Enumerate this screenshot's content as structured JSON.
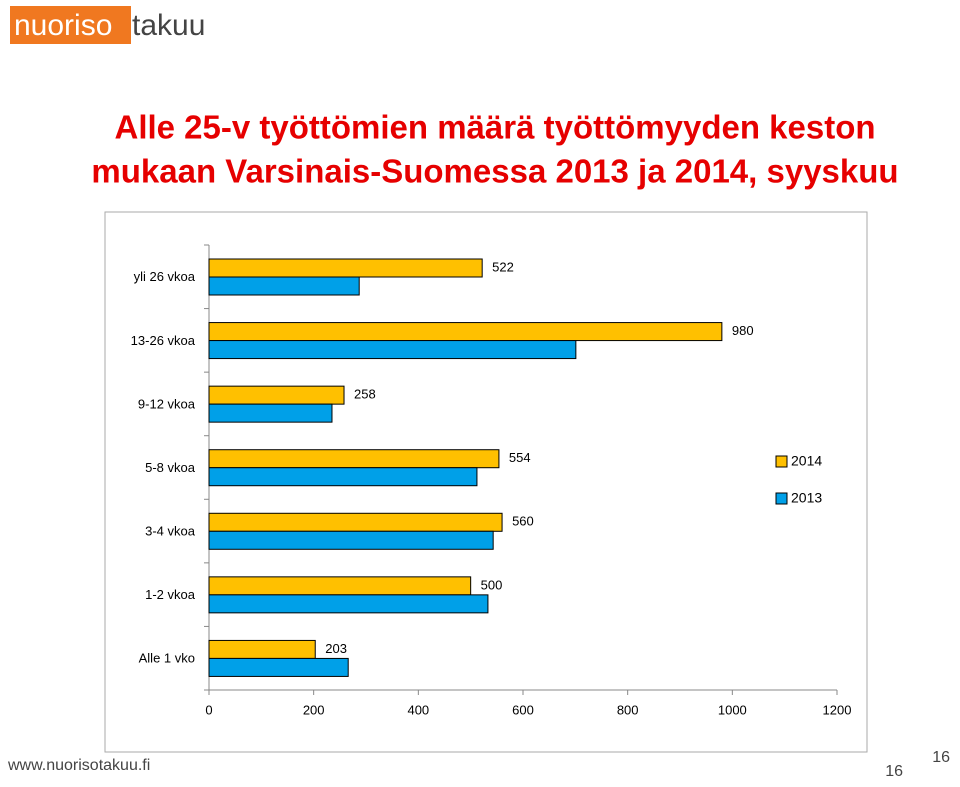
{
  "header": {
    "logo_part1": "nuoriso",
    "logo_part2": "takuu"
  },
  "title": [
    "Alle 25-v työttömien määrä työttömyyden keston",
    "mukaan Varsinais-Suomessa 2013 ja 2014, syyskuu"
  ],
  "footer": {
    "url": "www.nuorisotakuu.fi",
    "page": "16",
    "page_small": "16"
  },
  "chart_data": {
    "type": "hbar",
    "categories": [
      "yli 26 vkoa",
      "13-26 vkoa",
      "9-12 vkoa",
      "5-8 vkoa",
      "3-4 vkoa",
      "1-2 vkoa",
      "Alle 1 vko"
    ],
    "series": [
      {
        "name": "2014",
        "color": "#FFC000",
        "values": [
          522,
          980,
          258,
          554,
          560,
          500,
          203
        ],
        "labeled": true
      },
      {
        "name": "2013",
        "color": "#00A0E8",
        "values": [
          287,
          701,
          235,
          512,
          543,
          533,
          266
        ],
        "labeled": false
      }
    ],
    "xlim": [
      0,
      1200
    ],
    "xticks": [
      0,
      200,
      400,
      600,
      800,
      1000,
      1200
    ],
    "legend": "right"
  }
}
